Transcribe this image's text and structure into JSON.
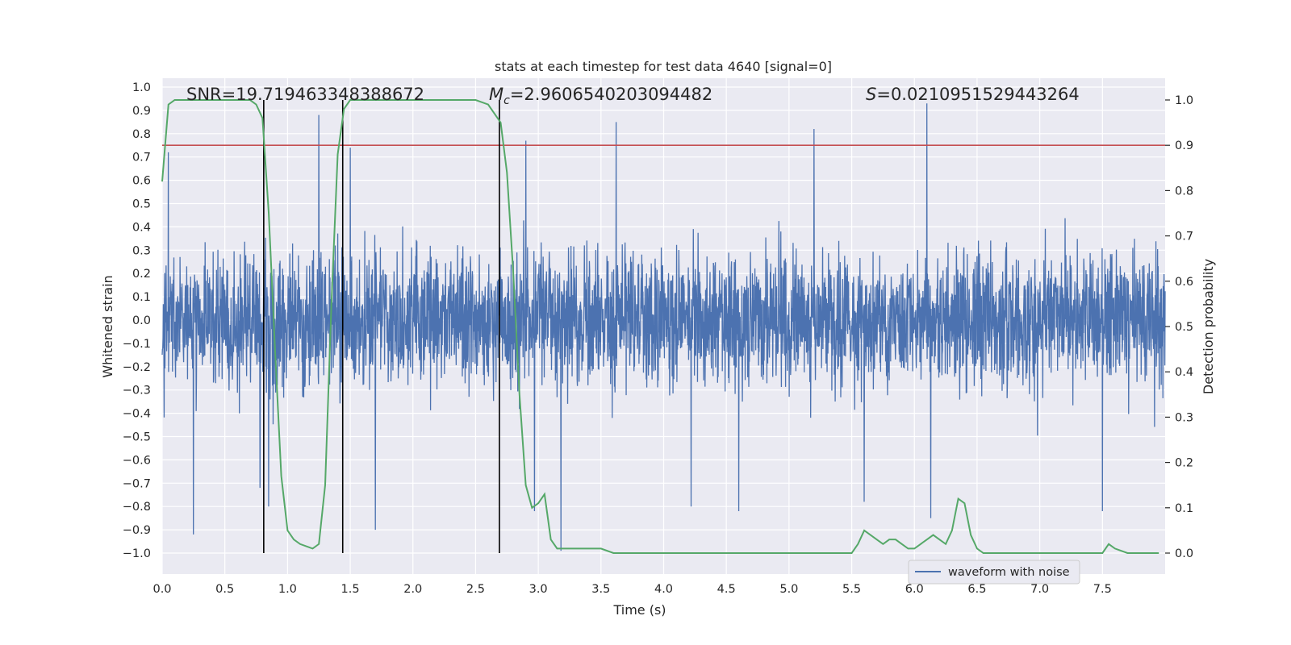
{
  "chart_data": {
    "type": "line",
    "title": "stats at each timestep for test data 4640 [signal=0]",
    "xlabel": "Time (s)",
    "ylabel_left": "Whitened strain",
    "ylabel_right": "Detection probability",
    "xlim": [
      0.0,
      8.0
    ],
    "ylim_left": [
      -1.0,
      1.0
    ],
    "ylim_right": [
      0.0,
      1.0
    ],
    "x_ticks": [
      "0.0",
      "0.5",
      "1.0",
      "1.5",
      "2.0",
      "2.5",
      "3.0",
      "3.5",
      "4.0",
      "4.5",
      "5.0",
      "5.5",
      "6.0",
      "6.5",
      "7.0",
      "7.5"
    ],
    "y_left_ticks": [
      "1.0",
      "0.9",
      "0.8",
      "0.7",
      "0.6",
      "0.5",
      "0.4",
      "0.3",
      "0.2",
      "0.1",
      "0.0",
      "-0.1",
      "-0.2",
      "-0.3",
      "-0.4",
      "-0.5",
      "-0.6",
      "-0.7",
      "-0.8",
      "-0.9",
      "-1.0"
    ],
    "y_right_ticks": [
      "1.0",
      "0.9",
      "0.8",
      "0.7",
      "0.6",
      "0.5",
      "0.4",
      "0.3",
      "0.2",
      "0.1",
      "0.0"
    ],
    "grid": true,
    "annotations": {
      "snr": "SNR=19.719463348388672",
      "mc_symbol": "M",
      "mc_sub": "c",
      "mc_value": "=2.9606540203094482",
      "s_symbol": "S",
      "s_value": "=0.0210951529443264"
    },
    "threshold": {
      "axis": "right",
      "value": 0.9,
      "color": "#c44e52"
    },
    "vertical_lines": [
      0.81,
      1.44,
      2.69
    ],
    "legend": {
      "label": "waveform with noise",
      "location": "lower-right"
    },
    "series": [
      {
        "name": "waveform with noise",
        "axis": "left",
        "color": "#4c72b0",
        "description": "dense whitened strain noise, amplitude mostly within ±0.5",
        "spikes": [
          {
            "x": 0.05,
            "y": 0.72
          },
          {
            "x": 0.25,
            "y": -0.92
          },
          {
            "x": 0.78,
            "y": -0.72
          },
          {
            "x": 0.85,
            "y": -0.8
          },
          {
            "x": 1.25,
            "y": 0.88
          },
          {
            "x": 1.5,
            "y": 0.74
          },
          {
            "x": 1.7,
            "y": -0.9
          },
          {
            "x": 2.9,
            "y": 0.77
          },
          {
            "x": 2.97,
            "y": -0.82
          },
          {
            "x": 3.18,
            "y": -0.99
          },
          {
            "x": 3.62,
            "y": 0.85
          },
          {
            "x": 4.22,
            "y": -0.8
          },
          {
            "x": 4.6,
            "y": -0.82
          },
          {
            "x": 5.2,
            "y": 0.82
          },
          {
            "x": 5.6,
            "y": -0.78
          },
          {
            "x": 6.1,
            "y": 0.93
          },
          {
            "x": 6.13,
            "y": -0.85
          },
          {
            "x": 7.5,
            "y": -0.82
          }
        ]
      },
      {
        "name": "detection probability",
        "axis": "right",
        "color": "#55a868",
        "x": [
          0.0,
          0.05,
          0.1,
          0.2,
          0.3,
          0.4,
          0.5,
          0.6,
          0.7,
          0.75,
          0.8,
          0.85,
          0.9,
          0.95,
          1.0,
          1.05,
          1.1,
          1.2,
          1.25,
          1.3,
          1.35,
          1.4,
          1.45,
          1.5,
          1.55,
          1.6,
          1.7,
          1.8,
          2.0,
          2.2,
          2.4,
          2.5,
          2.6,
          2.65,
          2.7,
          2.75,
          2.8,
          2.85,
          2.9,
          2.95,
          3.0,
          3.05,
          3.1,
          3.15,
          3.2,
          3.3,
          3.4,
          3.5,
          3.6,
          3.8,
          4.0,
          4.2,
          4.4,
          4.6,
          4.8,
          5.0,
          5.2,
          5.4,
          5.5,
          5.55,
          5.6,
          5.65,
          5.7,
          5.75,
          5.8,
          5.85,
          5.9,
          5.95,
          6.0,
          6.05,
          6.1,
          6.15,
          6.2,
          6.25,
          6.3,
          6.35,
          6.4,
          6.45,
          6.5,
          6.55,
          6.6,
          6.7,
          6.8,
          7.0,
          7.2,
          7.4,
          7.5,
          7.55,
          7.6,
          7.7,
          7.8,
          7.95
        ],
        "y": [
          0.82,
          0.99,
          1.0,
          1.0,
          1.0,
          1.0,
          1.0,
          1.0,
          1.0,
          0.99,
          0.96,
          0.75,
          0.45,
          0.17,
          0.05,
          0.03,
          0.02,
          0.01,
          0.02,
          0.15,
          0.55,
          0.88,
          0.98,
          1.0,
          1.0,
          1.0,
          1.0,
          1.0,
          1.0,
          1.0,
          1.0,
          1.0,
          0.99,
          0.97,
          0.95,
          0.84,
          0.62,
          0.35,
          0.15,
          0.1,
          0.11,
          0.13,
          0.03,
          0.01,
          0.01,
          0.01,
          0.01,
          0.01,
          0.0,
          0.0,
          0.0,
          0.0,
          0.0,
          0.0,
          0.0,
          0.0,
          0.0,
          0.0,
          0.0,
          0.02,
          0.05,
          0.04,
          0.03,
          0.02,
          0.03,
          0.03,
          0.02,
          0.01,
          0.01,
          0.02,
          0.03,
          0.04,
          0.03,
          0.02,
          0.05,
          0.12,
          0.11,
          0.04,
          0.01,
          0.0,
          0.0,
          0.0,
          0.0,
          0.0,
          0.0,
          0.0,
          0.0,
          0.02,
          0.01,
          0.0,
          0.0,
          0.0
        ]
      }
    ]
  }
}
